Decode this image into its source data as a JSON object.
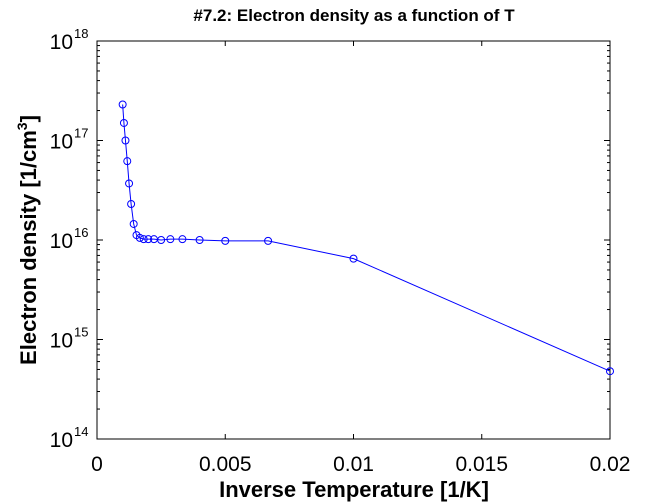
{
  "chart_data": {
    "type": "line",
    "title": "#7.2: Electron density as a function of T",
    "xlabel": "Inverse Temperature [1/K]",
    "ylabel_main": "Electron density [1/cm",
    "ylabel_sup": "3",
    "ylabel_close": "]",
    "xlim": [
      0,
      0.02
    ],
    "ylim": [
      100000000000000.0,
      1e+18
    ],
    "y_scale": "log",
    "grid": false,
    "x_ticks": [
      {
        "value": 0,
        "label": "0"
      },
      {
        "value": 0.005,
        "label": "0.005"
      },
      {
        "value": 0.01,
        "label": "0.01"
      },
      {
        "value": 0.015,
        "label": "0.015"
      },
      {
        "value": 0.02,
        "label": "0.02"
      }
    ],
    "y_ticks": [
      {
        "value": 100000000000000.0,
        "base": "10",
        "exp": "14"
      },
      {
        "value": 1000000000000000.0,
        "base": "10",
        "exp": "15"
      },
      {
        "value": 1e+16,
        "base": "10",
        "exp": "16"
      },
      {
        "value": 1e+17,
        "base": "10",
        "exp": "17"
      },
      {
        "value": 1e+18,
        "base": "10",
        "exp": "18"
      }
    ],
    "series": [
      {
        "color": "#0000ff",
        "marker": "circle",
        "x": [
          0.001,
          0.00105,
          0.00111,
          0.00118,
          0.00125,
          0.00133,
          0.00143,
          0.00154,
          0.00167,
          0.00182,
          0.002,
          0.00222,
          0.0025,
          0.00286,
          0.00333,
          0.004,
          0.005,
          0.00667,
          0.01,
          0.02
        ],
        "y": [
          2.3e+17,
          1.5e+17,
          1e+17,
          6.2e+16,
          3.7e+16,
          2.3e+16,
          1.45e+16,
          1.12e+16,
          1.05e+16,
          1.02e+16,
          1.02e+16,
          1.02e+16,
          1e+16,
          1.02e+16,
          1.02e+16,
          1e+16,
          9800000000000000.0,
          9800000000000000.0,
          6500000000000000.0,
          480000000000000.0
        ]
      }
    ]
  }
}
